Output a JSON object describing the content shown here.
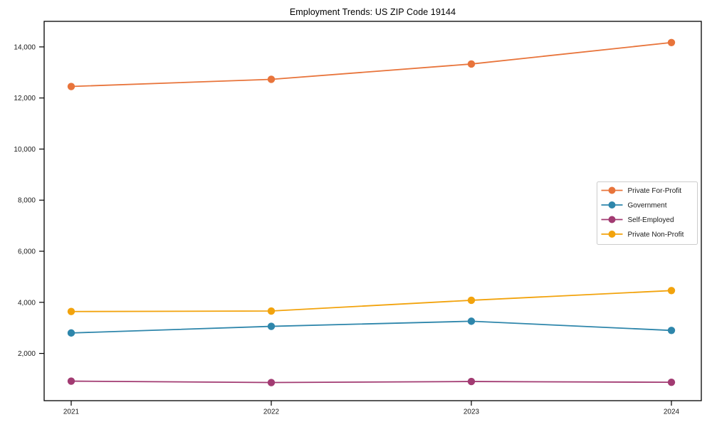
{
  "chart_data": {
    "type": "line",
    "title": "Employment Trends: US ZIP Code 19144",
    "categories": [
      "2021",
      "2022",
      "2023",
      "2024"
    ],
    "series": [
      {
        "name": "Private For-Profit",
        "color": "#E8743B",
        "values": [
          12450,
          12730,
          13330,
          14170
        ]
      },
      {
        "name": "Government",
        "color": "#2E86AB",
        "values": [
          2800,
          3060,
          3260,
          2900
        ]
      },
      {
        "name": "Self-Employed",
        "color": "#A23B72",
        "values": [
          915,
          860,
          900,
          870
        ]
      },
      {
        "name": "Private Non-Profit",
        "color": "#F2A30D",
        "values": [
          3640,
          3660,
          4080,
          4460
        ]
      }
    ],
    "xlabel": "",
    "ylabel": "",
    "yticks": [
      2000,
      4000,
      6000,
      8000,
      10000,
      12000,
      14000
    ],
    "ylim": [
      150,
      15000
    ],
    "grid": false,
    "legend_position": "center-right",
    "marker": "circle",
    "axis_color": "#000000",
    "legend_border_color": "#cccccc",
    "background_color": "#ffffff"
  }
}
